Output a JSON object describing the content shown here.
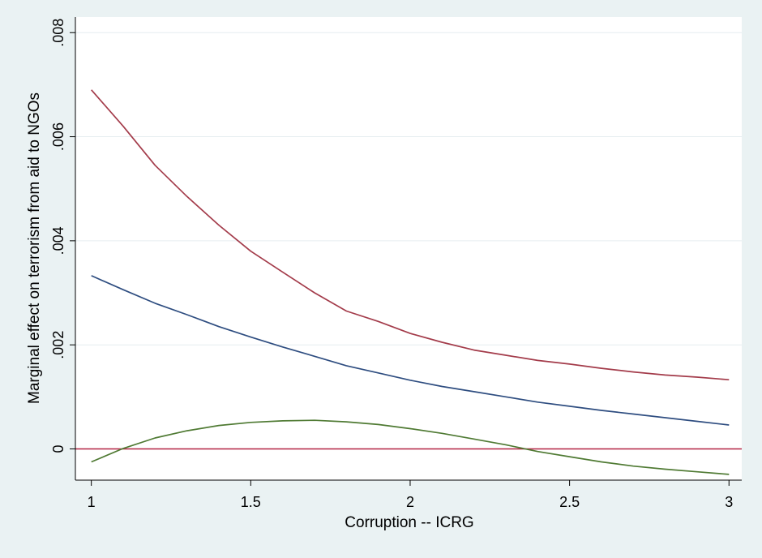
{
  "chart_data": {
    "type": "line",
    "title": "",
    "xlabel": "Corruption -- ICRG",
    "ylabel": "Marginal effect on terrorism from aid to NGOs",
    "xlim": [
      0.95,
      3.04
    ],
    "ylim": [
      -0.0006,
      0.0083
    ],
    "xticks": [
      1,
      1.5,
      2,
      2.5,
      3
    ],
    "xtick_labels": [
      "1",
      "1.5",
      "2",
      "2.5",
      "3"
    ],
    "yticks": [
      0,
      0.002,
      0.004,
      0.006,
      0.008
    ],
    "ytick_labels": [
      "0",
      ".002",
      ".004",
      ".006",
      ".008"
    ],
    "grid": "horizontal",
    "legend": "none",
    "x": [
      1,
      1.1,
      1.2,
      1.3,
      1.4,
      1.5,
      1.6,
      1.7,
      1.8,
      1.9,
      2,
      2.1,
      2.2,
      2.3,
      2.4,
      2.5,
      2.6,
      2.7,
      2.8,
      2.9,
      3
    ],
    "series": [
      {
        "color": "#a33b4a",
        "values": [
          0.0069,
          0.0062,
          0.00545,
          0.00485,
          0.0043,
          0.0038,
          0.0034,
          0.003,
          0.00265,
          0.00245,
          0.00222,
          0.00205,
          0.0019,
          0.0018,
          0.0017,
          0.00163,
          0.00155,
          0.00148,
          0.00142,
          0.00138,
          0.00133
        ]
      },
      {
        "color": "#2e4d80",
        "values": [
          0.00333,
          0.00306,
          0.0028,
          0.00258,
          0.00235,
          0.00215,
          0.00196,
          0.00178,
          0.0016,
          0.00146,
          0.00132,
          0.0012,
          0.0011,
          0.001,
          0.0009,
          0.00082,
          0.00074,
          0.00067,
          0.0006,
          0.00053,
          0.00046
        ]
      },
      {
        "color": "#4f7a33",
        "values": [
          -0.00025,
          1e-05,
          0.00021,
          0.00035,
          0.00045,
          0.00051,
          0.00054,
          0.00055,
          0.00052,
          0.00047,
          0.00039,
          0.0003,
          0.00019,
          8e-05,
          -5e-05,
          -0.00015,
          -0.00025,
          -0.00033,
          -0.00039,
          -0.00044,
          -0.00049
        ]
      }
    ],
    "reference_line": {
      "y": 0,
      "color": "#b22242"
    }
  }
}
